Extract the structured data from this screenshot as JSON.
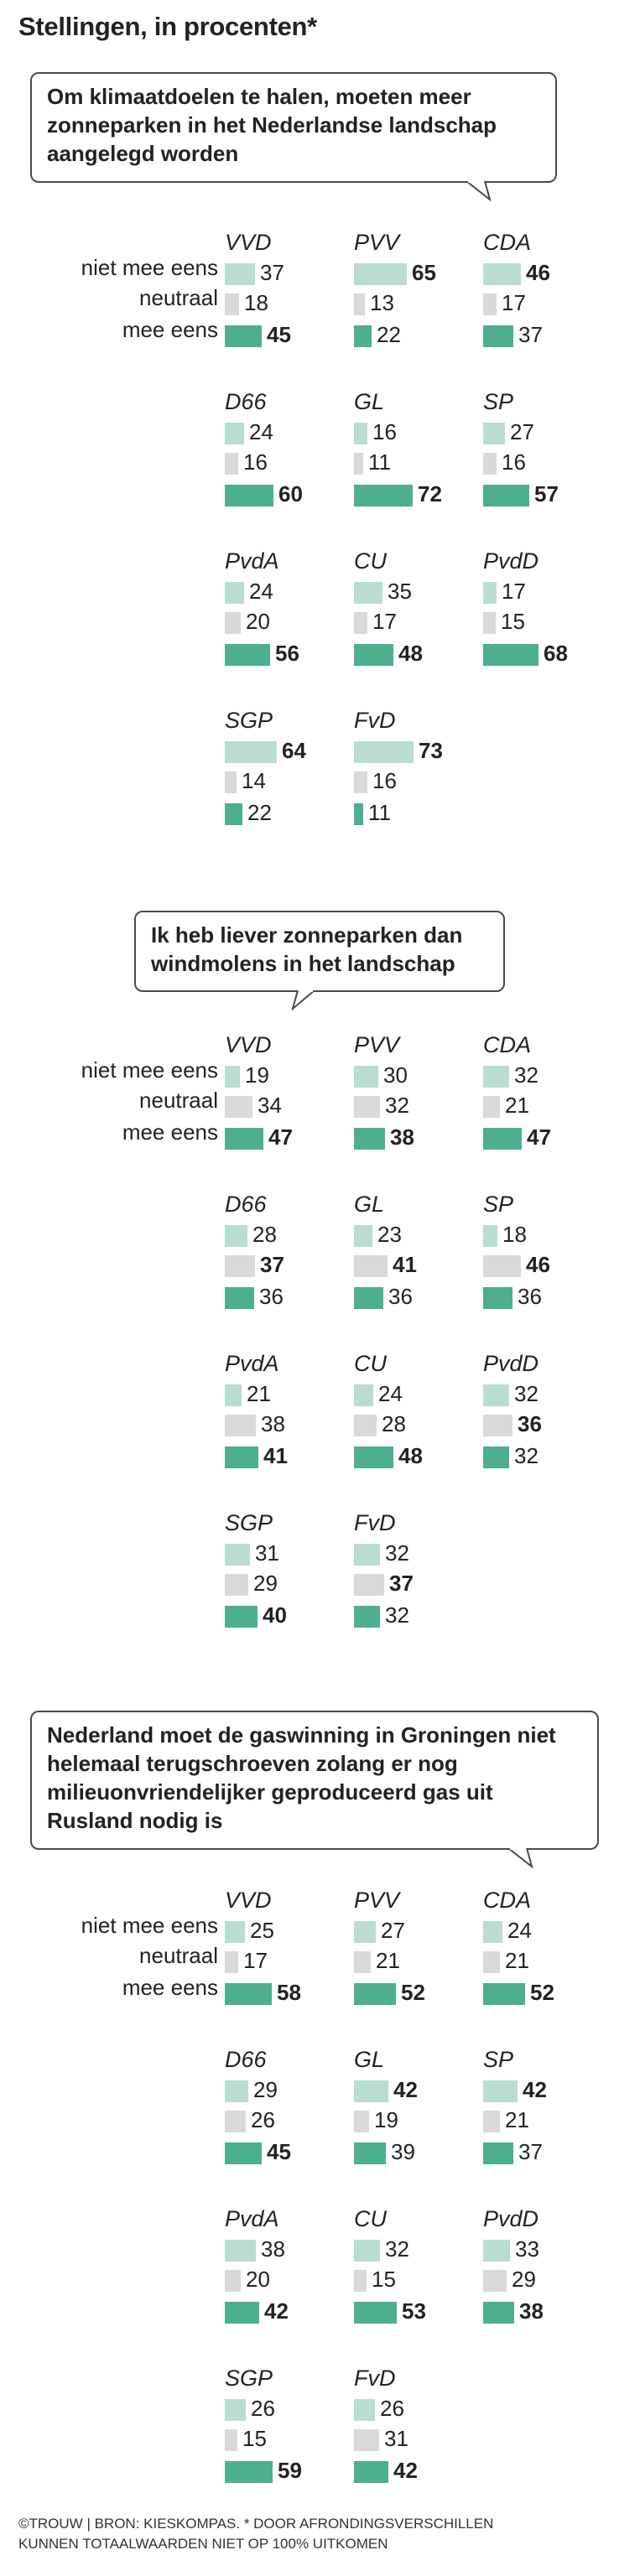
{
  "title": "Stellingen, in procenten*",
  "footnote_line1": "©TROUW | BRON: KIESKOMPAS. * DOOR AFRONDINGSVERSCHILLEN",
  "footnote_line2": "KUNNEN TOTAALWAARDEN NIET OP 100% UITKOMEN",
  "row_labels": [
    "niet mee eens",
    "neutraal",
    "mee eens"
  ],
  "colors": {
    "niet_mee_eens": "#b9ddd1",
    "neutraal": "#d9d9d9",
    "mee_eens": "#4daf8f",
    "bubble_border": "#4a4a4a"
  },
  "chart_data": [
    {
      "type": "bar",
      "title": "Om klimaatdoelen te halen, moeten meer zonneparken in het Nederlandse landschap aangelegd worden",
      "categories": [
        "niet mee eens",
        "neutraal",
        "mee eens"
      ],
      "series": [
        {
          "name": "VVD",
          "values": [
            37,
            18,
            45
          ]
        },
        {
          "name": "PVV",
          "values": [
            65,
            13,
            22
          ]
        },
        {
          "name": "CDA",
          "values": [
            46,
            17,
            37
          ]
        },
        {
          "name": "D66",
          "values": [
            24,
            16,
            60
          ]
        },
        {
          "name": "GL",
          "values": [
            16,
            11,
            72
          ]
        },
        {
          "name": "SP",
          "values": [
            27,
            16,
            57
          ]
        },
        {
          "name": "PvdA",
          "values": [
            24,
            20,
            56
          ]
        },
        {
          "name": "CU",
          "values": [
            35,
            17,
            48
          ]
        },
        {
          "name": "PvdD",
          "values": [
            17,
            15,
            68
          ]
        },
        {
          "name": "SGP",
          "values": [
            64,
            14,
            22
          ]
        },
        {
          "name": "FvD",
          "values": [
            73,
            16,
            11
          ]
        }
      ]
    },
    {
      "type": "bar",
      "title": "Ik heb liever zonneparken dan windmolens in het landschap",
      "categories": [
        "niet mee eens",
        "neutraal",
        "mee eens"
      ],
      "series": [
        {
          "name": "VVD",
          "values": [
            19,
            34,
            47
          ]
        },
        {
          "name": "PVV",
          "values": [
            30,
            32,
            38
          ]
        },
        {
          "name": "CDA",
          "values": [
            32,
            21,
            47
          ]
        },
        {
          "name": "D66",
          "values": [
            28,
            37,
            36
          ]
        },
        {
          "name": "GL",
          "values": [
            23,
            41,
            36
          ]
        },
        {
          "name": "SP",
          "values": [
            18,
            46,
            36
          ]
        },
        {
          "name": "PvdA",
          "values": [
            21,
            38,
            41
          ]
        },
        {
          "name": "CU",
          "values": [
            24,
            28,
            48
          ]
        },
        {
          "name": "PvdD",
          "values": [
            32,
            36,
            32
          ]
        },
        {
          "name": "SGP",
          "values": [
            31,
            29,
            40
          ]
        },
        {
          "name": "FvD",
          "values": [
            32,
            37,
            32
          ]
        }
      ]
    },
    {
      "type": "bar",
      "title": "Nederland moet de gaswinning in Groningen niet helemaal terugschroeven zolang er nog milieuonvriendelijker geproduceerd gas uit Rusland nodig is",
      "categories": [
        "niet mee eens",
        "neutraal",
        "mee eens"
      ],
      "series": [
        {
          "name": "VVD",
          "values": [
            25,
            17,
            58
          ]
        },
        {
          "name": "PVV",
          "values": [
            27,
            21,
            52
          ]
        },
        {
          "name": "CDA",
          "values": [
            24,
            21,
            52
          ]
        },
        {
          "name": "D66",
          "values": [
            29,
            26,
            45
          ]
        },
        {
          "name": "GL",
          "values": [
            42,
            19,
            39
          ]
        },
        {
          "name": "SP",
          "values": [
            42,
            21,
            37
          ]
        },
        {
          "name": "PvdA",
          "values": [
            38,
            20,
            42
          ]
        },
        {
          "name": "CU",
          "values": [
            32,
            15,
            53
          ]
        },
        {
          "name": "PvdD",
          "values": [
            33,
            29,
            38
          ]
        },
        {
          "name": "SGP",
          "values": [
            26,
            15,
            59
          ]
        },
        {
          "name": "FvD",
          "values": [
            26,
            31,
            42
          ]
        }
      ]
    }
  ]
}
